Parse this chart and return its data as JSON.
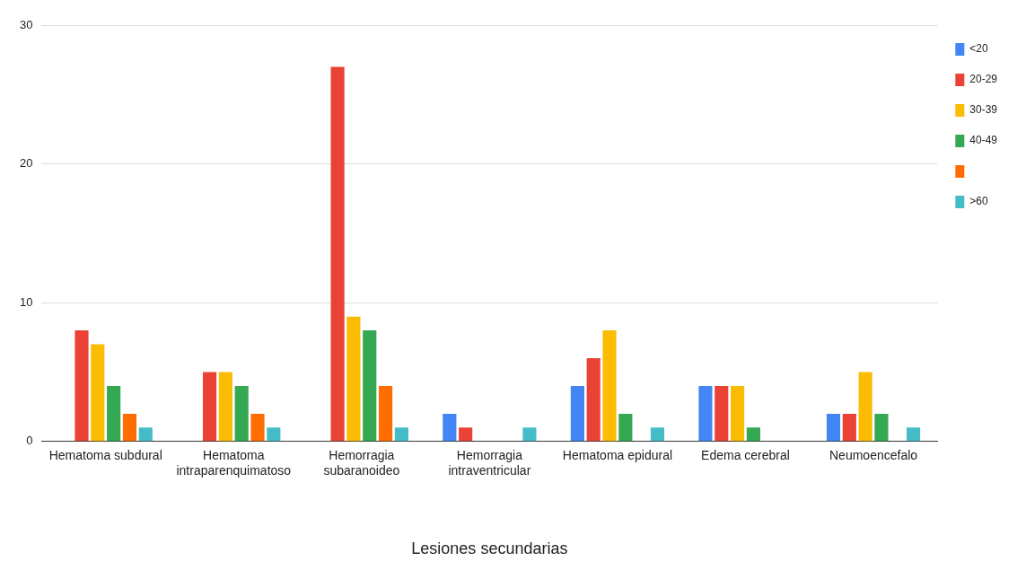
{
  "chart_data": {
    "type": "bar",
    "xlabel": "Lesiones secundarias",
    "categories": [
      "Hematoma subdural",
      "Hematoma intraparenquimatoso",
      "Hemorragia subaranoideo",
      "Hemorragia intraventricular",
      "Hematoma epidural",
      "Edema cerebral",
      "Neumoencefalo"
    ],
    "series": [
      {
        "name": "<20",
        "color": "#4285f4",
        "values": [
          0,
          0,
          0,
          2,
          4,
          4,
          2
        ]
      },
      {
        "name": "20-29",
        "color": "#ea4335",
        "values": [
          8,
          5,
          27,
          1,
          6,
          4,
          2
        ]
      },
      {
        "name": "30-39",
        "color": "#fbbc04",
        "values": [
          7,
          5,
          9,
          0,
          8,
          4,
          5
        ]
      },
      {
        "name": "40-49",
        "color": "#34a853",
        "values": [
          4,
          4,
          8,
          0,
          2,
          1,
          2
        ]
      },
      {
        "color": "#ff6d01",
        "values": [
          2,
          2,
          4,
          0,
          0,
          0,
          0
        ]
      },
      {
        "name": ">60",
        "color": "#46bdc6",
        "values": [
          1,
          1,
          1,
          1,
          1,
          0,
          1
        ]
      }
    ],
    "ylim": [
      0,
      30
    ],
    "yticks": [
      0,
      10,
      20,
      30
    ],
    "grid": "y",
    "legend": "top right"
  }
}
